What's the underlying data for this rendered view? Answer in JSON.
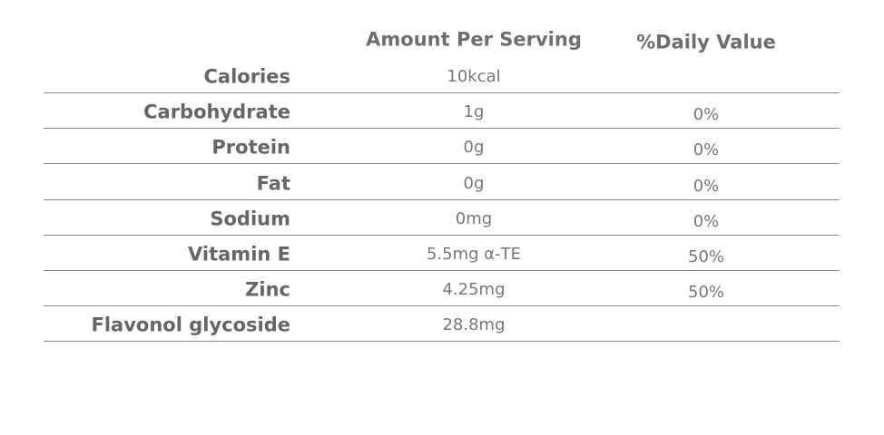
{
  "table": {
    "columns": [
      "Amount Per Serving",
      "%Daily Value"
    ],
    "rows": [
      {
        "nutrient": "Calories",
        "amount": "10kcal"
      },
      {
        "nutrient": "Carbohydrate",
        "amount": "1g",
        "daily": "0%"
      },
      {
        "nutrient": "Protein",
        "amount": "0g",
        "daily": "0%"
      },
      {
        "nutrient": "Fat",
        "amount": "0g",
        "daily": "0%"
      },
      {
        "nutrient": "Sodium",
        "amount": "0mg",
        "daily": "0%"
      },
      {
        "nutrient": "Vitamin E",
        "amount": "5.5mg α-TE",
        "daily": "50%"
      },
      {
        "nutrient": "Zinc",
        "amount": "4.25mg",
        "daily": "50%"
      },
      {
        "nutrient": "Flavonol glycoside",
        "amount": "28.8mg"
      }
    ]
  }
}
